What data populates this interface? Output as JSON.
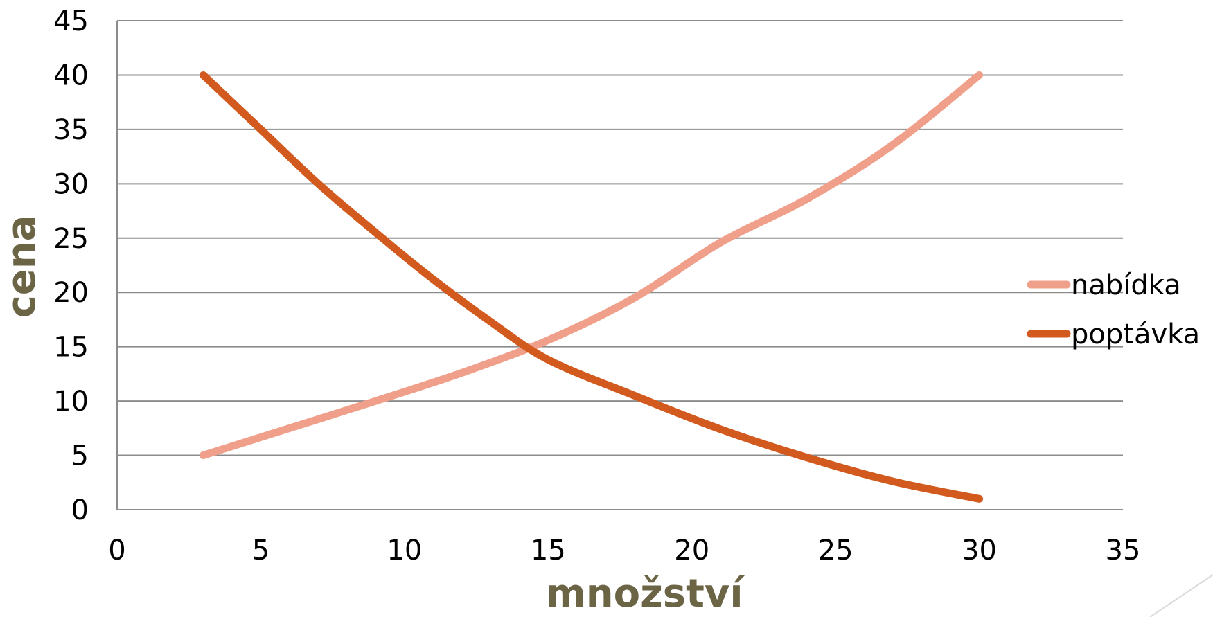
{
  "chart_data": {
    "type": "line",
    "title": "",
    "xlabel": "množství",
    "ylabel": "cena",
    "xlim": [
      0,
      35
    ],
    "ylim": [
      0,
      45
    ],
    "x_ticks": [
      "0",
      "5",
      "10",
      "15",
      "20",
      "25",
      "30",
      "35"
    ],
    "y_ticks": [
      "0",
      "5",
      "10",
      "15",
      "20",
      "25",
      "30",
      "35",
      "40",
      "45"
    ],
    "grid": "horizontal",
    "legend_position": "right",
    "series": [
      {
        "name": "nabídka",
        "color": "#f0a08a",
        "points": [
          [
            3,
            5
          ],
          [
            6,
            7.5
          ],
          [
            9,
            10
          ],
          [
            12,
            12.6
          ],
          [
            15,
            15.6
          ],
          [
            18,
            19.5
          ],
          [
            21,
            24.6
          ],
          [
            24,
            28.6
          ],
          [
            27,
            33.6
          ],
          [
            30,
            40
          ]
        ]
      },
      {
        "name": "poptávka",
        "color": "#d35a1e",
        "points": [
          [
            3,
            40
          ],
          [
            5,
            35
          ],
          [
            7,
            30
          ],
          [
            9,
            25.5
          ],
          [
            11,
            21.2
          ],
          [
            13,
            17.3
          ],
          [
            15,
            13.8
          ],
          [
            18,
            10.5
          ],
          [
            21,
            7.4
          ],
          [
            24,
            4.8
          ],
          [
            27,
            2.6
          ],
          [
            30,
            1
          ]
        ]
      }
    ]
  }
}
